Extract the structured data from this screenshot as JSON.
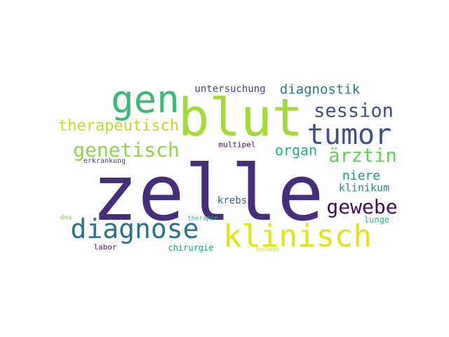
{
  "words": [
    {
      "text": "zelle",
      "color": "#472e7c"
    },
    {
      "text": "blut",
      "color": "#a2da37"
    },
    {
      "text": "gen",
      "color": "#3aba76"
    },
    {
      "text": "tumor",
      "color": "#3b518b"
    },
    {
      "text": "klinisch",
      "color": "#e2e418"
    },
    {
      "text": "diagnose",
      "color": "#2c718e"
    },
    {
      "text": "session",
      "color": "#3b528b"
    },
    {
      "text": "genetisch",
      "color": "#8ed645"
    },
    {
      "text": "gewebe",
      "color": "#440f54"
    },
    {
      "text": "ärztin",
      "color": "#67cc5c"
    },
    {
      "text": "therapeutisch",
      "color": "#bdde26"
    },
    {
      "text": "diagnostik",
      "color": "#2a788e"
    },
    {
      "text": "organ",
      "color": "#27ad81"
    },
    {
      "text": "niere",
      "color": "#21918c"
    },
    {
      "text": "klinikum",
      "color": "#23898e"
    },
    {
      "text": "untersuchung",
      "color": "#3e4a89"
    },
    {
      "text": "krebs",
      "color": "#31688e"
    },
    {
      "text": "lunge",
      "color": "#35b779"
    },
    {
      "text": "chirurgie",
      "color": "#20a386"
    },
    {
      "text": "multipel",
      "color": "#450457"
    },
    {
      "text": "erkrankung",
      "color": "#414487"
    },
    {
      "text": "labor",
      "color": "#48186a"
    },
    {
      "text": "therapie",
      "color": "#2db27d"
    },
    {
      "text": "dna",
      "color": "#75d054"
    },
    {
      "text": "befund",
      "color": "#d8e219"
    }
  ]
}
